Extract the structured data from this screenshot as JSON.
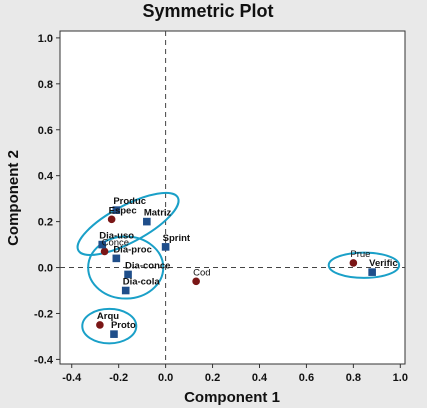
{
  "chart_data": {
    "type": "scatter",
    "title": "Symmetric Plot",
    "xlabel": "Component 1",
    "ylabel": "Component 2",
    "xlim": [
      -0.45,
      1.02
    ],
    "ylim": [
      -0.42,
      1.03
    ],
    "x_ticks": [
      -0.4,
      -0.2,
      0.0,
      0.2,
      0.4,
      0.6,
      0.8,
      1.0
    ],
    "x_tick_labels": [
      "-0.4",
      "-0.2",
      "0.0",
      "0.2",
      "0.4",
      "0.6",
      "0.8",
      "1.0"
    ],
    "y_ticks": [
      -0.4,
      -0.2,
      0.0,
      0.2,
      0.4,
      0.6,
      0.8,
      1.0
    ],
    "y_tick_labels": [
      "-0.4",
      "-0.2",
      "0.0",
      "0.2",
      "0.4",
      "0.6",
      "0.8",
      "1.0"
    ],
    "reference_lines": {
      "x": 0,
      "y": 0,
      "style": "dashed"
    },
    "grid": false,
    "colors": {
      "circle_points": "#7a1616",
      "square_points": "#1f4e8a",
      "ellipses": "#1aa0c8",
      "plot_background": "#ffffff",
      "frame_background": "#e9e9e9"
    },
    "series": [
      {
        "marker": "circle",
        "points": [
          {
            "label": "Espec",
            "x": -0.23,
            "y": 0.21,
            "bold": true
          },
          {
            "label": "Conce",
            "x": -0.26,
            "y": 0.07,
            "bold": false
          },
          {
            "label": "Cod",
            "x": 0.13,
            "y": -0.06,
            "bold": false
          },
          {
            "label": "Prue",
            "x": 0.8,
            "y": 0.02,
            "bold": false
          },
          {
            "label": "Arqu",
            "x": -0.28,
            "y": -0.25,
            "bold": true
          }
        ]
      },
      {
        "marker": "square",
        "points": [
          {
            "label": "Produc",
            "x": -0.21,
            "y": 0.25,
            "bold": true
          },
          {
            "label": "Matriz",
            "x": -0.08,
            "y": 0.2,
            "bold": true
          },
          {
            "label": "Dia-uso",
            "x": -0.27,
            "y": 0.1,
            "bold": true
          },
          {
            "label": "Sprint",
            "x": 0.0,
            "y": 0.09,
            "bold": true
          },
          {
            "label": "Dia-proc",
            "x": -0.21,
            "y": 0.04,
            "bold": true
          },
          {
            "label": "Dia-conce",
            "x": -0.16,
            "y": -0.03,
            "bold": true
          },
          {
            "label": "Dia-cola",
            "x": -0.17,
            "y": -0.1,
            "bold": true
          },
          {
            "label": "Proto",
            "x": -0.22,
            "y": -0.29,
            "bold": true
          },
          {
            "label": "Verific",
            "x": 0.88,
            "y": -0.02,
            "bold": true
          }
        ]
      }
    ],
    "groups": [
      {
        "cx": -0.16,
        "cy": 0.19,
        "rx": 0.24,
        "ry": 0.08,
        "rotate": 28
      },
      {
        "cx": -0.17,
        "cy": 0.0,
        "rx": 0.16,
        "ry": 0.135,
        "rotate": 0
      },
      {
        "cx": -0.24,
        "cy": -0.255,
        "rx": 0.115,
        "ry": 0.075,
        "rotate": 0
      },
      {
        "cx": 0.845,
        "cy": 0.01,
        "rx": 0.15,
        "ry": 0.055,
        "rotate": 0
      }
    ]
  }
}
